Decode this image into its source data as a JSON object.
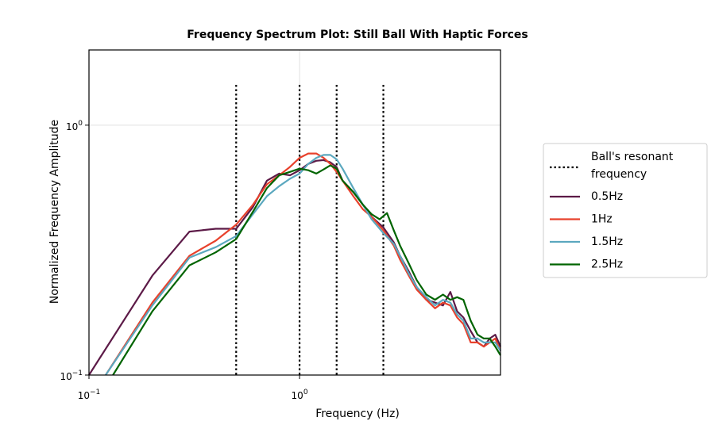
{
  "chart_data": {
    "type": "line",
    "title": "Frequency Spectrum Plot: Still Ball With Haptic Forces",
    "xlabel": "Frequency (Hz)",
    "ylabel": "Normalized Frequency Amplitude",
    "xscale": "log",
    "yscale": "log",
    "xlim": [
      0.1,
      9.0
    ],
    "ylim": [
      0.1,
      2.0
    ],
    "x_ticks": [
      {
        "value": 0.1,
        "base": "10",
        "exp": "−1"
      },
      {
        "value": 1.0,
        "base": "10",
        "exp": "0"
      }
    ],
    "y_ticks": [
      {
        "value": 0.1,
        "base": "10",
        "exp": "−1"
      },
      {
        "value": 1.0,
        "base": "10",
        "exp": "0"
      }
    ],
    "grid": true,
    "legend": {
      "placement": "outside-right",
      "entries": [
        {
          "label_lines": [
            "Ball's resonant",
            "frequency"
          ],
          "style": "dotted",
          "color": "#000000"
        },
        {
          "label_lines": [
            "0.5Hz"
          ],
          "style": "solid",
          "color": "#5c1a47"
        },
        {
          "label_lines": [
            "1Hz"
          ],
          "style": "solid",
          "color": "#e8412c"
        },
        {
          "label_lines": [
            "1.5Hz"
          ],
          "style": "solid",
          "color": "#5ba8bf"
        },
        {
          "label_lines": [
            "2.5Hz"
          ],
          "style": "solid",
          "color": "#006400"
        }
      ]
    },
    "resonant_frequencies": {
      "x": [
        0.5,
        1.0,
        1.5,
        2.5
      ],
      "y_range": [
        0.1,
        1.45
      ],
      "color": "#000000"
    },
    "series": [
      {
        "name": "0.5Hz",
        "color": "#5c1a47",
        "x": [
          0.1,
          0.2,
          0.3,
          0.4,
          0.5,
          0.6,
          0.7,
          0.8,
          0.9,
          1.0,
          1.1,
          1.2,
          1.3,
          1.4,
          1.5,
          1.6,
          1.8,
          2.0,
          2.2,
          2.5,
          2.8,
          3.0,
          3.3,
          3.6,
          4.0,
          4.4,
          4.8,
          5.2,
          5.6,
          6.0,
          6.5,
          7.0,
          7.5,
          8.0,
          8.5,
          9.0
        ],
        "y": [
          0.1,
          0.25,
          0.375,
          0.385,
          0.385,
          0.47,
          0.6,
          0.64,
          0.63,
          0.66,
          0.7,
          0.72,
          0.725,
          0.71,
          0.68,
          0.6,
          0.54,
          0.48,
          0.43,
          0.39,
          0.34,
          0.3,
          0.26,
          0.225,
          0.2,
          0.195,
          0.19,
          0.215,
          0.18,
          0.17,
          0.15,
          0.135,
          0.13,
          0.14,
          0.145,
          0.13
        ]
      },
      {
        "name": "1Hz",
        "color": "#e8412c",
        "x": [
          0.12,
          0.2,
          0.3,
          0.4,
          0.5,
          0.6,
          0.7,
          0.8,
          0.9,
          1.0,
          1.1,
          1.2,
          1.3,
          1.4,
          1.5,
          1.6,
          1.8,
          2.0,
          2.2,
          2.5,
          2.8,
          3.0,
          3.3,
          3.6,
          4.0,
          4.4,
          4.8,
          5.2,
          5.6,
          6.0,
          6.5,
          7.0,
          7.5,
          8.0,
          8.5,
          9.0
        ],
        "y": [
          0.1,
          0.195,
          0.3,
          0.345,
          0.4,
          0.48,
          0.58,
          0.63,
          0.68,
          0.74,
          0.77,
          0.77,
          0.74,
          0.7,
          0.65,
          0.6,
          0.52,
          0.46,
          0.43,
          0.38,
          0.33,
          0.29,
          0.25,
          0.22,
          0.2,
          0.185,
          0.195,
          0.19,
          0.17,
          0.16,
          0.135,
          0.135,
          0.13,
          0.135,
          0.14,
          0.125
        ]
      },
      {
        "name": "1.5Hz",
        "color": "#5ba8bf",
        "x": [
          0.12,
          0.2,
          0.3,
          0.4,
          0.5,
          0.6,
          0.7,
          0.8,
          0.9,
          1.0,
          1.1,
          1.2,
          1.3,
          1.4,
          1.5,
          1.6,
          1.8,
          2.0,
          2.2,
          2.5,
          2.8,
          3.0,
          3.3,
          3.6,
          4.0,
          4.4,
          4.8,
          5.2,
          5.6,
          6.0,
          6.5,
          7.0,
          7.5,
          8.0,
          8.5,
          9.0
        ],
        "y": [
          0.1,
          0.19,
          0.295,
          0.325,
          0.36,
          0.44,
          0.52,
          0.57,
          0.61,
          0.64,
          0.7,
          0.74,
          0.76,
          0.76,
          0.73,
          0.67,
          0.56,
          0.48,
          0.42,
          0.37,
          0.335,
          0.3,
          0.255,
          0.225,
          0.205,
          0.19,
          0.2,
          0.195,
          0.175,
          0.165,
          0.14,
          0.14,
          0.135,
          0.135,
          0.135,
          0.125
        ]
      },
      {
        "name": "2.5Hz",
        "color": "#006400",
        "x": [
          0.13,
          0.2,
          0.3,
          0.4,
          0.5,
          0.6,
          0.7,
          0.8,
          0.9,
          1.0,
          1.1,
          1.2,
          1.3,
          1.4,
          1.5,
          1.6,
          1.8,
          2.0,
          2.2,
          2.4,
          2.6,
          2.8,
          3.0,
          3.3,
          3.6,
          4.0,
          4.4,
          4.8,
          5.2,
          5.6,
          6.0,
          6.5,
          7.0,
          7.5,
          8.0,
          8.5,
          9.0
        ],
        "y": [
          0.1,
          0.18,
          0.275,
          0.31,
          0.35,
          0.45,
          0.56,
          0.63,
          0.65,
          0.67,
          0.66,
          0.64,
          0.665,
          0.69,
          0.67,
          0.6,
          0.54,
          0.48,
          0.44,
          0.42,
          0.445,
          0.38,
          0.33,
          0.28,
          0.24,
          0.21,
          0.2,
          0.21,
          0.2,
          0.205,
          0.2,
          0.165,
          0.145,
          0.14,
          0.14,
          0.13,
          0.12
        ]
      }
    ]
  }
}
